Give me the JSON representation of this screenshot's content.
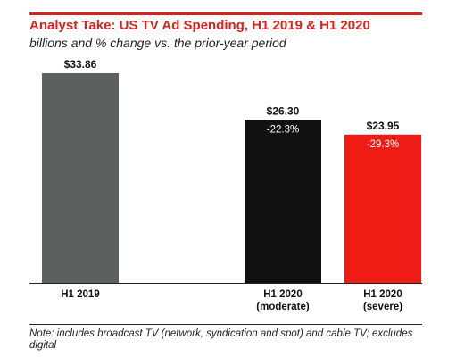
{
  "header": {
    "title": "Analyst Take: US TV Ad Spending, H1 2019 & H1 2020",
    "subtitle": "billions and % change vs. the prior-year period"
  },
  "chart_data": {
    "type": "bar",
    "title": "Analyst Take: US TV Ad Spending, H1 2019 & H1 2020",
    "subtitle": "billions and % change vs. the prior-year period",
    "categories": [
      [
        "H1 2019"
      ],
      [
        "H1 2020",
        "(moderate)"
      ],
      [
        "H1 2020",
        "(severe)"
      ]
    ],
    "values": [
      33.86,
      26.3,
      23.95
    ],
    "value_labels": [
      "$33.86",
      "$26.30",
      "$23.95"
    ],
    "change_labels": [
      "",
      "-22.3%",
      "-29.3%"
    ],
    "colors": [
      "#5e6060",
      "#111111",
      "#ee1c14"
    ],
    "change_colors": [
      "#ffffff",
      "#ffffff",
      "#ffffff"
    ],
    "ylim": [
      0,
      33.86
    ],
    "grid": false,
    "legend": "none"
  },
  "footer": {
    "note": "Note: includes broadcast TV (network, syndication and spot) and cable TV; excludes digital"
  }
}
